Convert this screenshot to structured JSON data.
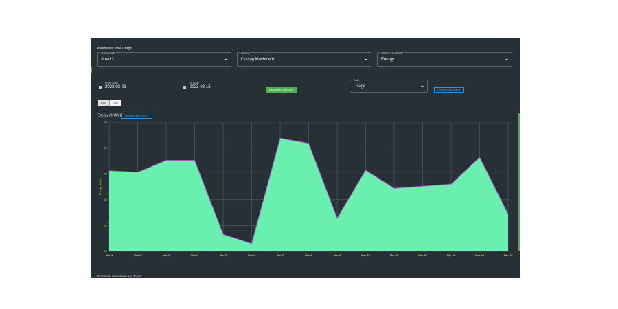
{
  "header": {
    "title": "Parameter Total Usage"
  },
  "filters": [
    {
      "label": "Workspace",
      "value": "Shed 2"
    },
    {
      "label": "Device",
      "value": "Cutting Machine 6"
    },
    {
      "label": "Device Parameter",
      "value": "Energy"
    }
  ],
  "dates": [
    {
      "label": "From Date",
      "value": "2023-03-01"
    },
    {
      "label": "To Date",
      "value": "2023-03-15"
    }
  ],
  "generate_button": "GENERATE REPORT",
  "data_select": {
    "label": "Data",
    "value": "Usage"
  },
  "download_table": "DOWNLOAD TABLE",
  "toggle": [
    "BAR",
    "LINE"
  ],
  "download_pdf": "DOWNLOAD PDF",
  "chart_data": {
    "type": "area",
    "title": "Energy ( KWh )",
    "y_label": "Energy (kWh)",
    "categories": [
      "Mar 1",
      "Mar 2",
      "Mar 3",
      "Mar 4",
      "Mar 5",
      "Mar 6",
      "Mar 7",
      "Mar 8",
      "Mar 9",
      "Mar 10",
      "Mar 11",
      "Mar 12",
      "Mar 13",
      "Mar 14",
      "Mar 15"
    ],
    "values": [
      25.6,
      25.3,
      27.6,
      27.6,
      13.3,
      11.5,
      31.9,
      30.9,
      16.4,
      25.7,
      22.2,
      22.6,
      23.0,
      28.2,
      17.2
    ],
    "color": "#69f0ae",
    "line_color": "#c050e0",
    "ylim": [
      10,
      35
    ],
    "yticks": [
      10,
      15,
      20,
      25,
      30,
      35
    ],
    "grid": true
  },
  "footer": {
    "title": "Parameter Miscellaneous Report"
  }
}
